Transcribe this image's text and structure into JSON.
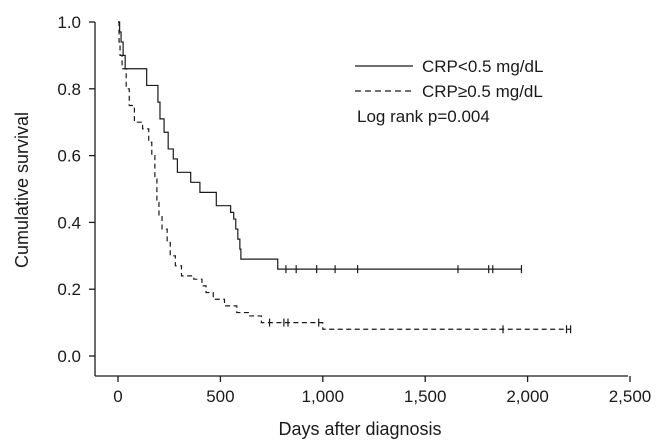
{
  "chart_data": {
    "type": "line",
    "title": "",
    "xlabel": "Days after diagnosis",
    "ylabel": "Cumulative survival",
    "xlim": [
      0,
      2500
    ],
    "ylim": [
      0,
      1.0
    ],
    "x_ticks": [
      {
        "value": 0,
        "label": "0"
      },
      {
        "value": 500,
        "label": "500"
      },
      {
        "value": 1000,
        "label": "1,000"
      },
      {
        "value": 1500,
        "label": "1,500"
      },
      {
        "value": 2000,
        "label": "2,000"
      },
      {
        "value": 2500,
        "label": "2,500"
      }
    ],
    "y_ticks": [
      {
        "value": 0.0,
        "label": "0.0"
      },
      {
        "value": 0.2,
        "label": "0.2"
      },
      {
        "value": 0.4,
        "label": "0.4"
      },
      {
        "value": 0.6,
        "label": "0.6"
      },
      {
        "value": 0.8,
        "label": "0.8"
      },
      {
        "value": 1.0,
        "label": "1.0"
      }
    ],
    "grid": false,
    "legend_position": "top-right",
    "annotation": "Log rank p=0.004",
    "series": [
      {
        "name": "CRP<0.5 mg/dL",
        "line_style": "solid",
        "color": "#1a1a1a",
        "steps": [
          [
            0,
            1.0
          ],
          [
            8,
            0.97
          ],
          [
            15,
            0.94
          ],
          [
            25,
            0.9
          ],
          [
            35,
            0.86
          ],
          [
            140,
            0.81
          ],
          [
            195,
            0.76
          ],
          [
            205,
            0.71
          ],
          [
            225,
            0.67
          ],
          [
            245,
            0.62
          ],
          [
            270,
            0.59
          ],
          [
            290,
            0.55
          ],
          [
            355,
            0.52
          ],
          [
            400,
            0.49
          ],
          [
            480,
            0.45
          ],
          [
            550,
            0.43
          ],
          [
            565,
            0.41
          ],
          [
            575,
            0.38
          ],
          [
            585,
            0.35
          ],
          [
            595,
            0.32
          ],
          [
            600,
            0.29
          ],
          [
            780,
            0.26
          ],
          [
            1970,
            0.26
          ]
        ],
        "censored": [
          820,
          870,
          970,
          1060,
          1170,
          1660,
          1810,
          1830,
          1970
        ]
      },
      {
        "name": "CRP≥0.5 mg/dL",
        "line_style": "dashed",
        "color": "#1a1a1a",
        "steps": [
          [
            0,
            1.0
          ],
          [
            5,
            0.94
          ],
          [
            10,
            0.9
          ],
          [
            20,
            0.86
          ],
          [
            40,
            0.8
          ],
          [
            55,
            0.75
          ],
          [
            80,
            0.7
          ],
          [
            120,
            0.68
          ],
          [
            150,
            0.64
          ],
          [
            165,
            0.6
          ],
          [
            180,
            0.53
          ],
          [
            190,
            0.46
          ],
          [
            200,
            0.42
          ],
          [
            215,
            0.38
          ],
          [
            240,
            0.34
          ],
          [
            255,
            0.3
          ],
          [
            280,
            0.27
          ],
          [
            310,
            0.24
          ],
          [
            370,
            0.23
          ],
          [
            410,
            0.21
          ],
          [
            430,
            0.19
          ],
          [
            465,
            0.17
          ],
          [
            520,
            0.15
          ],
          [
            580,
            0.13
          ],
          [
            640,
            0.12
          ],
          [
            700,
            0.1
          ],
          [
            1000,
            0.08
          ],
          [
            2210,
            0.08
          ]
        ],
        "censored": [
          740,
          810,
          830,
          980,
          1880,
          2190,
          2210
        ]
      }
    ]
  }
}
